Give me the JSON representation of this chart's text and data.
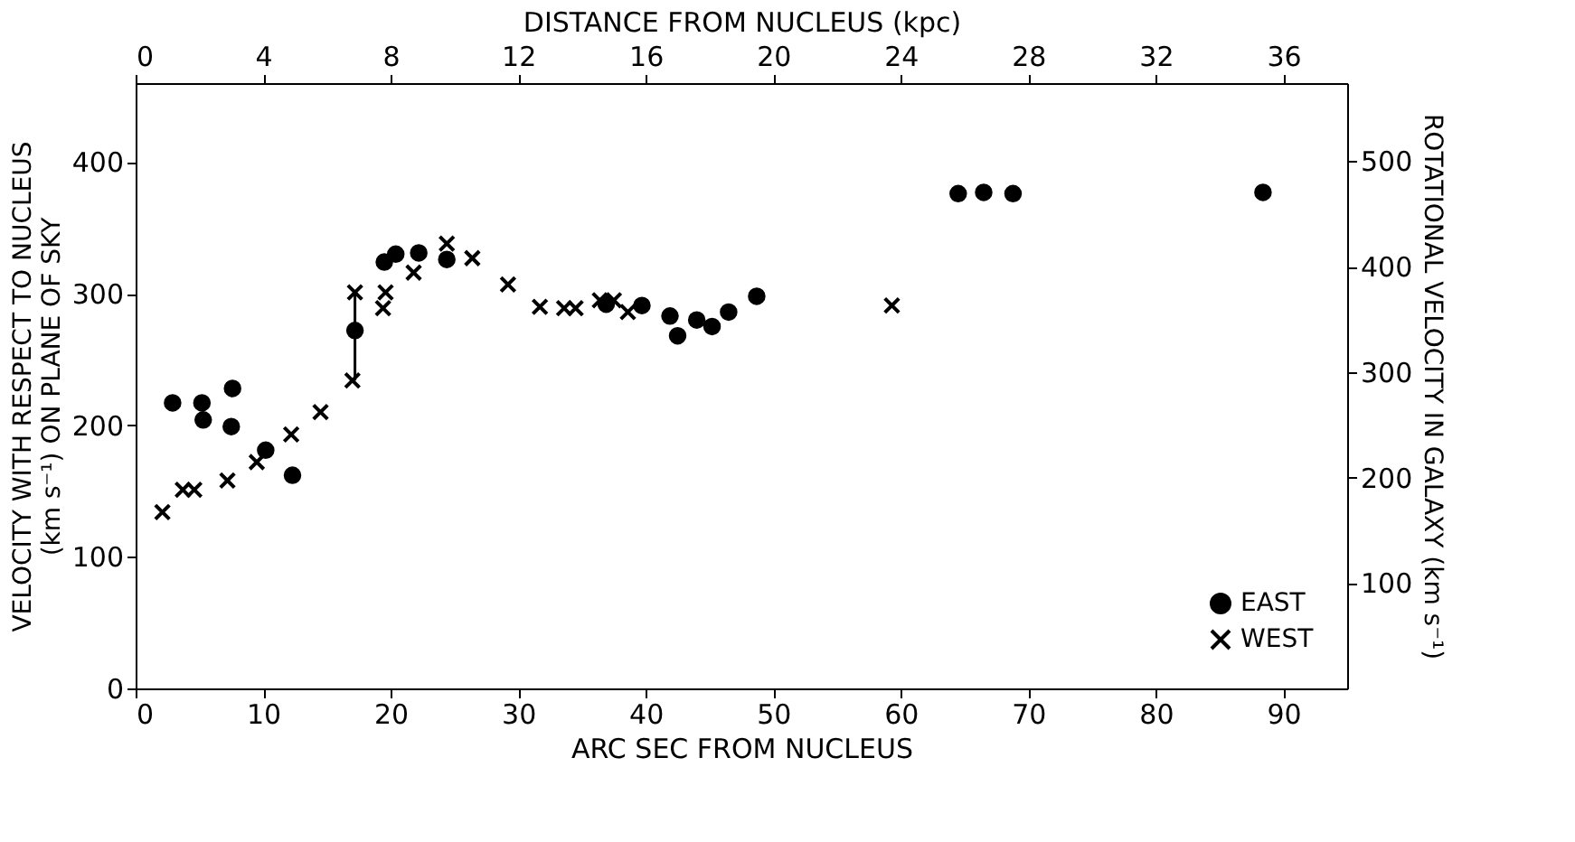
{
  "chart_data": {
    "type": "scatter",
    "xlabel": "ARC SEC FROM NUCLEUS",
    "ylabel": "VELOCITY WITH RESPECT TO NUCLEUS\n(km s⁻¹) ON PLANE OF SKY",
    "y2label": "ROTATIONAL VELOCITY IN GALAXY (km s⁻¹)",
    "x2label": "DISTANCE FROM NUCLEUS (kpc)",
    "xlim": [
      0,
      95
    ],
    "xticks": [
      0,
      10,
      20,
      30,
      40,
      50,
      60,
      70,
      80,
      90
    ],
    "ylim": [
      0,
      460
    ],
    "yticks": [
      0,
      100,
      200,
      300,
      400
    ],
    "y2lim": [
      0,
      574
    ],
    "y2ticks": [
      100,
      200,
      300,
      400,
      500
    ],
    "x2lim": [
      0,
      38
    ],
    "x2ticks": [
      0,
      4,
      8,
      12,
      16,
      20,
      24,
      28,
      32,
      36
    ],
    "legend": "bottom right",
    "grid": false,
    "series": [
      {
        "name": "EAST",
        "color": "#000000",
        "marker": "circle",
        "x": [
          2.9,
          5.2,
          5.3,
          7.6,
          7.5,
          10.2,
          12.3,
          17.2,
          19.5,
          20.4,
          22.2,
          24.4,
          36.9,
          39.7,
          41.9,
          42.5,
          44.0,
          45.2,
          46.5,
          48.7,
          64.5,
          66.5,
          68.8,
          88.4
        ],
        "values": [
          217,
          217,
          204,
          228,
          199,
          181,
          162,
          272,
          324,
          330,
          331,
          326,
          292,
          291,
          283,
          268,
          280,
          275,
          286,
          298,
          376,
          377,
          376,
          377
        ],
        "errors": [
          null,
          null,
          null,
          null,
          null,
          null,
          null,
          [
            234,
            301
          ],
          null,
          null,
          null,
          null,
          null,
          null,
          null,
          null,
          null,
          null,
          null,
          null,
          null,
          null,
          null,
          null
        ]
      },
      {
        "name": "WEST",
        "color": "#000000",
        "marker": "cross",
        "x": [
          2.1,
          3.7,
          4.6,
          7.2,
          9.5,
          12.2,
          14.5,
          17.0,
          17.2,
          19.4,
          19.6,
          21.8,
          24.4,
          26.4,
          29.2,
          31.7,
          33.6,
          34.5,
          36.4,
          37.5,
          38.6,
          59.3
        ],
        "values": [
          134,
          151,
          151,
          158,
          172,
          193,
          210,
          234,
          301,
          289,
          301,
          316,
          338,
          327,
          307,
          290,
          289,
          289,
          295,
          295,
          286,
          291
        ]
      }
    ]
  }
}
